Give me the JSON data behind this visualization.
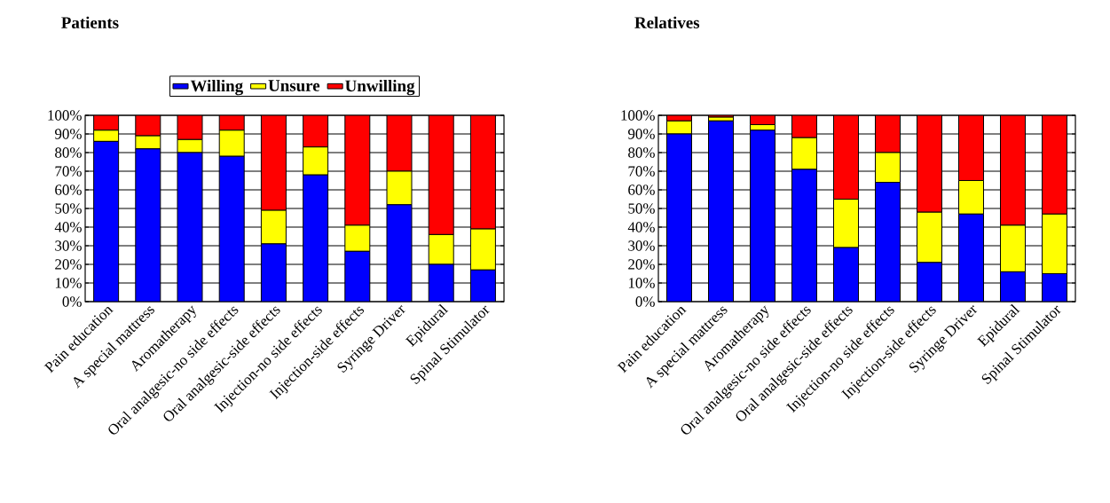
{
  "chart_data": [
    {
      "type": "bar",
      "title": "Patients",
      "stacked": true,
      "grid": "y",
      "legend": "top",
      "categories": [
        "Pain education",
        "A special mattress",
        "Aromatherapy",
        "Oral analgesic-no side effects",
        "Oral analgesic-side effects",
        "Injection-no side effects",
        "Injection-side effects",
        "Syringe Driver",
        "Epidural",
        "Spinal Stimulator"
      ],
      "series": [
        {
          "name": "Willing",
          "color": "#0000ff",
          "values": [
            86,
            82,
            80,
            78,
            31,
            68,
            27,
            52,
            20,
            17
          ]
        },
        {
          "name": "Unsure",
          "color": "#ffff00",
          "values": [
            6,
            7,
            7,
            14,
            18,
            15,
            14,
            18,
            16,
            22
          ]
        },
        {
          "name": "Unwilling",
          "color": "#ff0000",
          "values": [
            8,
            11,
            13,
            8,
            51,
            17,
            59,
            30,
            64,
            61
          ]
        }
      ],
      "ylim": [
        0,
        100
      ],
      "yticks": [
        {
          "value": 0,
          "label": "0%"
        },
        {
          "value": 10,
          "label": "10%"
        },
        {
          "value": 20,
          "label": "20%"
        },
        {
          "value": 30,
          "label": "30%"
        },
        {
          "value": 40,
          "label": "40%"
        },
        {
          "value": 50,
          "label": "50%"
        },
        {
          "value": 60,
          "label": "60%"
        },
        {
          "value": 70,
          "label": "70%"
        },
        {
          "value": 80,
          "label": "80%"
        },
        {
          "value": 90,
          "label": "90%"
        },
        {
          "value": 100,
          "label": "100%"
        }
      ]
    },
    {
      "type": "bar",
      "title": "Relatives",
      "stacked": true,
      "grid": "y",
      "categories": [
        "Pain education",
        "A special mattress",
        "Aromatherapy",
        "Oral analgesic-no side effects",
        "Oral analgesic-side effects",
        "Injection-no side effects",
        "Injection-side effects",
        "Syringe Driver",
        "Epidural",
        "Spinal Stimulator"
      ],
      "series": [
        {
          "color": "#0000ff",
          "values": [
            90,
            97,
            92,
            71,
            29,
            64,
            21,
            47,
            16,
            15
          ]
        },
        {
          "color": "#ffff00",
          "values": [
            7,
            2,
            3,
            17,
            26,
            16,
            27,
            18,
            25,
            32
          ]
        },
        {
          "color": "#ff0000",
          "values": [
            3,
            1,
            5,
            12,
            45,
            20,
            52,
            35,
            59,
            53
          ]
        }
      ],
      "ylim": [
        0,
        100
      ],
      "yticks": [
        {
          "value": 0,
          "label": "0%"
        },
        {
          "value": 10,
          "label": "10%"
        },
        {
          "value": 20,
          "label": "20%"
        },
        {
          "value": 30,
          "label": "30%"
        },
        {
          "value": 40,
          "label": "40%"
        },
        {
          "value": 50,
          "label": "50%"
        },
        {
          "value": 60,
          "label": "60%"
        },
        {
          "value": 70,
          "label": "70%"
        },
        {
          "value": 80,
          "label": "80%"
        },
        {
          "value": 90,
          "label": "90%"
        },
        {
          "value": 100,
          "label": "100%"
        }
      ]
    }
  ]
}
